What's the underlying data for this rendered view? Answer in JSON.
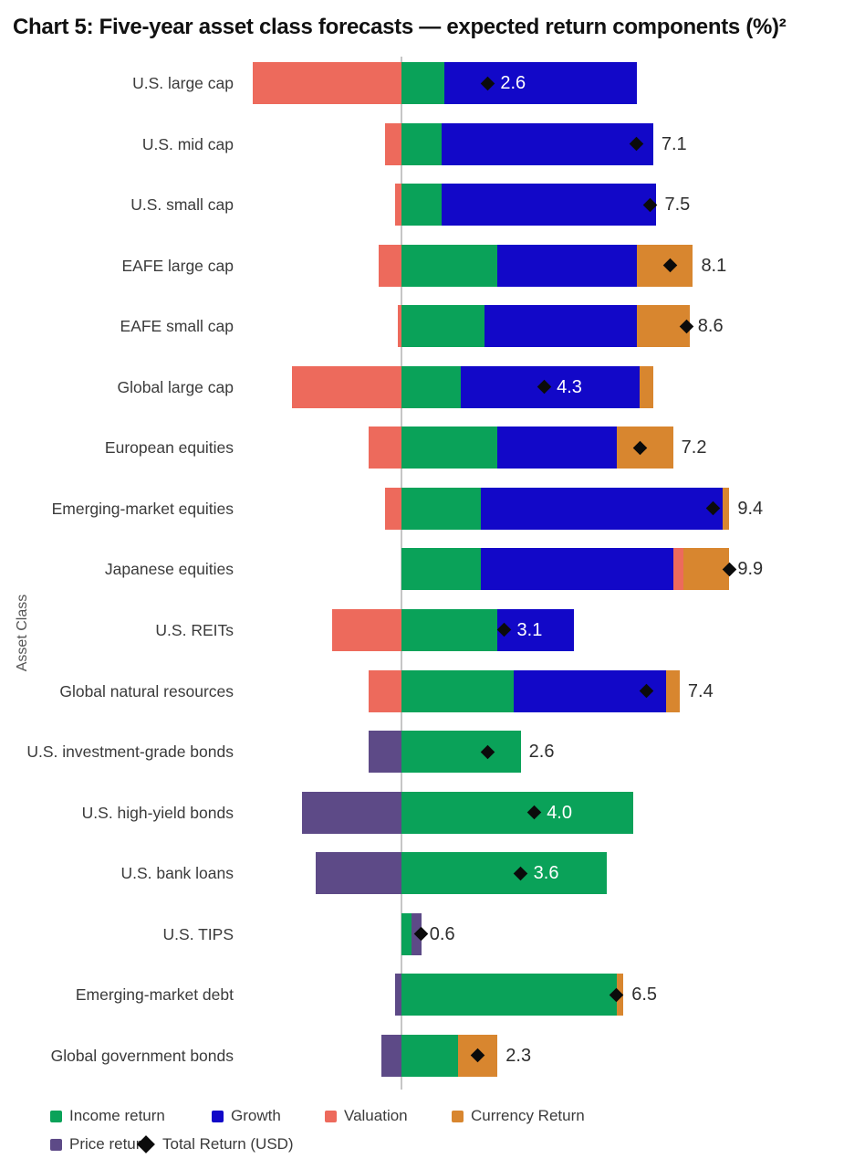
{
  "title": "Chart 5: Five-year asset class forecasts — expected return components (%)²",
  "y_axis_label": "Asset Class",
  "colors": {
    "income": "#0aa259",
    "growth": "#1208c8",
    "valuation": "#ed6a5c",
    "currency": "#d8862f",
    "price": "#5d4a87",
    "total_marker": "#0b0b0b",
    "zero_line": "#c6c6c6",
    "category_text": "#3b3b3b",
    "value_text_outside": "#2e2e2e",
    "value_text_inside": "#ffffff"
  },
  "legend": {
    "rows": [
      [
        {
          "label": "Income return",
          "series": "income",
          "marker": "square"
        },
        {
          "label": "Growth",
          "series": "growth",
          "marker": "square"
        },
        {
          "label": "Valuation",
          "series": "valuation",
          "marker": "square"
        },
        {
          "label": "Currency Return",
          "series": "currency",
          "marker": "square"
        }
      ],
      [
        {
          "label": "Price return",
          "series": "price",
          "marker": "square"
        },
        {
          "label": "Total Return (USD)",
          "series": "total",
          "marker": "diamond"
        }
      ]
    ]
  },
  "chart_data": {
    "type": "bar",
    "orientation": "horizontal",
    "stacked": true,
    "unit": "%",
    "xlim": [
      -5,
      10
    ],
    "series_names": {
      "income": "Income return",
      "growth": "Growth",
      "valuation": "Valuation",
      "currency": "Currency Return",
      "price": "Price return",
      "total": "Total Return (USD)"
    },
    "rows": [
      {
        "category": "U.S. large cap",
        "total": 2.6,
        "total_label": "2.6",
        "label_inside": true,
        "segments": [
          {
            "series": "valuation",
            "value": -4.5
          },
          {
            "series": "income",
            "value": 1.3
          },
          {
            "series": "growth",
            "value": 5.8
          }
        ]
      },
      {
        "category": "U.S. mid cap",
        "total": 7.1,
        "total_label": "7.1",
        "label_inside": false,
        "segments": [
          {
            "series": "valuation",
            "value": -0.5
          },
          {
            "series": "income",
            "value": 1.2
          },
          {
            "series": "growth",
            "value": 6.4
          }
        ]
      },
      {
        "category": "U.S. small cap",
        "total": 7.5,
        "total_label": "7.5",
        "label_inside": false,
        "segments": [
          {
            "series": "valuation",
            "value": -0.2
          },
          {
            "series": "income",
            "value": 1.2
          },
          {
            "series": "growth",
            "value": 6.5
          }
        ]
      },
      {
        "category": "EAFE large cap",
        "total": 8.1,
        "total_label": "8.1",
        "label_inside": false,
        "segments": [
          {
            "series": "valuation",
            "value": -0.7
          },
          {
            "series": "income",
            "value": 2.9
          },
          {
            "series": "growth",
            "value": 4.2
          },
          {
            "series": "currency",
            "value": 1.7
          }
        ]
      },
      {
        "category": "EAFE small cap",
        "total": 8.6,
        "total_label": "8.6",
        "label_inside": false,
        "segments": [
          {
            "series": "valuation",
            "value": -0.1
          },
          {
            "series": "income",
            "value": 2.5
          },
          {
            "series": "growth",
            "value": 4.6
          },
          {
            "series": "currency",
            "value": 1.6
          }
        ]
      },
      {
        "category": "Global large cap",
        "total": 4.3,
        "total_label": "4.3",
        "label_inside": true,
        "segments": [
          {
            "series": "valuation",
            "value": -3.3
          },
          {
            "series": "income",
            "value": 1.8
          },
          {
            "series": "growth",
            "value": 5.4
          },
          {
            "series": "currency",
            "value": 0.4
          }
        ]
      },
      {
        "category": "European equities",
        "total": 7.2,
        "total_label": "7.2",
        "label_inside": false,
        "segments": [
          {
            "series": "valuation",
            "value": -1.0
          },
          {
            "series": "income",
            "value": 2.9
          },
          {
            "series": "growth",
            "value": 3.6
          },
          {
            "series": "currency",
            "value": 1.7
          }
        ]
      },
      {
        "category": "Emerging-market equities",
        "total": 9.4,
        "total_label": "9.4",
        "label_inside": false,
        "segments": [
          {
            "series": "valuation",
            "value": -0.5
          },
          {
            "series": "income",
            "value": 2.4
          },
          {
            "series": "growth",
            "value": 7.3
          },
          {
            "series": "currency",
            "value": 0.2
          }
        ]
      },
      {
        "category": "Japanese equities",
        "total": 9.9,
        "total_label": "9.9",
        "label_inside": false,
        "segments": [
          {
            "series": "income",
            "value": 2.4
          },
          {
            "series": "growth",
            "value": 5.8
          },
          {
            "series": "valuation",
            "value": 0.3
          },
          {
            "series": "currency",
            "value": 1.4
          }
        ]
      },
      {
        "category": "U.S. REITs",
        "total": 3.1,
        "total_label": "3.1",
        "label_inside": true,
        "segments": [
          {
            "series": "valuation",
            "value": -2.1
          },
          {
            "series": "income",
            "value": 2.9
          },
          {
            "series": "growth",
            "value": 2.3
          }
        ]
      },
      {
        "category": "Global natural resources",
        "total": 7.4,
        "total_label": "7.4",
        "label_inside": false,
        "segments": [
          {
            "series": "valuation",
            "value": -1.0
          },
          {
            "series": "income",
            "value": 3.4
          },
          {
            "series": "growth",
            "value": 4.6
          },
          {
            "series": "currency",
            "value": 0.4
          }
        ]
      },
      {
        "category": "U.S. investment-grade bonds",
        "total": 2.6,
        "total_label": "2.6",
        "label_inside": false,
        "segments": [
          {
            "series": "price",
            "value": -1.0
          },
          {
            "series": "income",
            "value": 3.6
          }
        ]
      },
      {
        "category": "U.S. high-yield bonds",
        "total": 4.0,
        "total_label": "4.0",
        "label_inside": true,
        "segments": [
          {
            "series": "price",
            "value": -3.0
          },
          {
            "series": "income",
            "value": 7.0
          }
        ]
      },
      {
        "category": "U.S. bank loans",
        "total": 3.6,
        "total_label": "3.6",
        "label_inside": true,
        "segments": [
          {
            "series": "price",
            "value": -2.6
          },
          {
            "series": "income",
            "value": 6.2
          }
        ]
      },
      {
        "category": "U.S. TIPS",
        "total": 0.6,
        "total_label": "0.6",
        "label_inside": false,
        "segments": [
          {
            "series": "income",
            "value": 0.3
          },
          {
            "series": "price",
            "value": 0.3
          }
        ]
      },
      {
        "category": "Emerging-market debt",
        "total": 6.5,
        "total_label": "6.5",
        "label_inside": false,
        "segments": [
          {
            "series": "price",
            "value": -0.2
          },
          {
            "series": "income",
            "value": 6.5
          },
          {
            "series": "currency",
            "value": 0.2
          }
        ]
      },
      {
        "category": "Global government bonds",
        "total": 2.3,
        "total_label": "2.3",
        "label_inside": false,
        "segments": [
          {
            "series": "price",
            "value": -0.6
          },
          {
            "series": "income",
            "value": 1.7
          },
          {
            "series": "currency",
            "value": 1.2
          }
        ]
      }
    ]
  }
}
